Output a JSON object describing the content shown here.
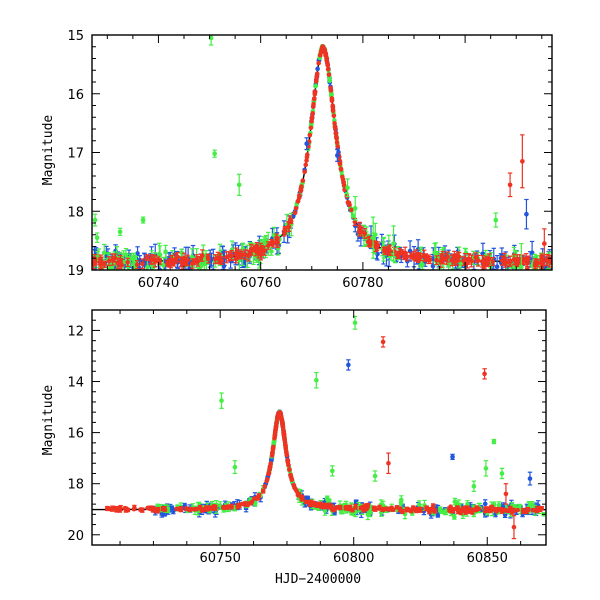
{
  "chart_data": [
    {
      "type": "scatter",
      "title": "",
      "xlabel": "",
      "ylabel": "Magnitude",
      "xlim": [
        60727,
        60817
      ],
      "ylim": [
        19.0,
        15.0
      ],
      "y_inverted": true,
      "grid": false,
      "x_ticks": [
        60740,
        60760,
        60780,
        60800
      ],
      "y_ticks": [
        15,
        16,
        17,
        18,
        19
      ],
      "x_tick_labels": [
        "60740",
        "60760",
        "60780",
        "60800"
      ],
      "y_tick_labels": [
        "15",
        "16",
        "17",
        "18",
        "19"
      ],
      "model": {
        "t0": 60772.2,
        "peak": 15.22,
        "base": 18.88,
        "tE": 3.1
      },
      "colors": {
        "green": "#44ee44",
        "blue": "#2255dd",
        "red": "#ee3322",
        "model": "#000000"
      },
      "outliers": [
        {
          "x": 60727.6,
          "y": 18.15,
          "err": 0.1,
          "color": "green"
        },
        {
          "x": 60728.0,
          "y": 18.45,
          "err": 0.08,
          "color": "green"
        },
        {
          "x": 60732.5,
          "y": 18.35,
          "err": 0.06,
          "color": "green"
        },
        {
          "x": 60737.0,
          "y": 18.15,
          "err": 0.05,
          "color": "green"
        },
        {
          "x": 60750.3,
          "y": 15.05,
          "err": 0.12,
          "color": "green"
        },
        {
          "x": 60751.0,
          "y": 17.02,
          "err": 0.06,
          "color": "green"
        },
        {
          "x": 60755.8,
          "y": 17.55,
          "err": 0.18,
          "color": "green"
        },
        {
          "x": 60777.0,
          "y": 17.6,
          "err": 0.15,
          "color": "green"
        },
        {
          "x": 60778.5,
          "y": 17.95,
          "err": 0.2,
          "color": "green"
        },
        {
          "x": 60782.0,
          "y": 18.45,
          "err": 0.35,
          "color": "green"
        },
        {
          "x": 60786.0,
          "y": 18.55,
          "err": 0.3,
          "color": "green"
        },
        {
          "x": 60806.0,
          "y": 18.15,
          "err": 0.12,
          "color": "green"
        },
        {
          "x": 60811.0,
          "y": 18.95,
          "err": 0.4,
          "color": "green"
        },
        {
          "x": 60769.0,
          "y": 16.85,
          "err": 0.1,
          "color": "blue"
        },
        {
          "x": 60775.0,
          "y": 17.05,
          "err": 0.1,
          "color": "blue"
        },
        {
          "x": 60812.0,
          "y": 18.05,
          "err": 0.25,
          "color": "blue"
        },
        {
          "x": 60811.2,
          "y": 17.15,
          "err": 0.45,
          "color": "red"
        },
        {
          "x": 60808.8,
          "y": 17.55,
          "err": 0.2,
          "color": "red"
        },
        {
          "x": 60815.5,
          "y": 18.55,
          "err": 0.25,
          "color": "red"
        }
      ]
    },
    {
      "type": "scatter",
      "title": "",
      "xlabel": "HJD−2400000",
      "ylabel": "Magnitude",
      "xlim": [
        60702,
        60872
      ],
      "ylim": [
        20.4,
        11.2
      ],
      "y_inverted": true,
      "grid": false,
      "x_ticks": [
        60750,
        60800,
        60850
      ],
      "y_ticks": [
        12,
        14,
        16,
        18,
        20
      ],
      "x_tick_labels": [
        "60750",
        "60800",
        "60850"
      ],
      "y_tick_labels": [
        "12",
        "14",
        "16",
        "18",
        "20"
      ],
      "model": {
        "t0": 60772.2,
        "peak": 15.2,
        "base": 19.02,
        "tE": 3.1
      },
      "colors": {
        "green": "#44ee44",
        "blue": "#2255dd",
        "red": "#ee3322",
        "model": "#000000"
      },
      "outliers": [
        {
          "x": 60750.5,
          "y": 14.75,
          "err": 0.3,
          "color": "green"
        },
        {
          "x": 60755.5,
          "y": 17.35,
          "err": 0.25,
          "color": "green"
        },
        {
          "x": 60786.0,
          "y": 13.95,
          "err": 0.3,
          "color": "green"
        },
        {
          "x": 60792.0,
          "y": 17.5,
          "err": 0.2,
          "color": "green"
        },
        {
          "x": 60800.5,
          "y": 11.7,
          "err": 0.25,
          "color": "green"
        },
        {
          "x": 60808.0,
          "y": 17.7,
          "err": 0.2,
          "color": "green"
        },
        {
          "x": 60845.0,
          "y": 18.1,
          "err": 0.2,
          "color": "green"
        },
        {
          "x": 60849.5,
          "y": 17.4,
          "err": 0.3,
          "color": "green"
        },
        {
          "x": 60852.5,
          "y": 16.35,
          "err": 0.08,
          "color": "green"
        },
        {
          "x": 60855.5,
          "y": 17.6,
          "err": 0.2,
          "color": "green"
        },
        {
          "x": 60798.0,
          "y": 13.35,
          "err": 0.2,
          "color": "blue"
        },
        {
          "x": 60837.0,
          "y": 16.95,
          "err": 0.1,
          "color": "blue"
        },
        {
          "x": 60866.0,
          "y": 17.8,
          "err": 0.25,
          "color": "blue"
        },
        {
          "x": 60811.0,
          "y": 12.45,
          "err": 0.2,
          "color": "red"
        },
        {
          "x": 60813.0,
          "y": 17.2,
          "err": 0.4,
          "color": "red"
        },
        {
          "x": 60849.0,
          "y": 13.7,
          "err": 0.2,
          "color": "red"
        },
        {
          "x": 60857.0,
          "y": 18.4,
          "err": 0.4,
          "color": "red"
        },
        {
          "x": 60860.0,
          "y": 19.7,
          "err": 0.45,
          "color": "red"
        }
      ]
    }
  ]
}
